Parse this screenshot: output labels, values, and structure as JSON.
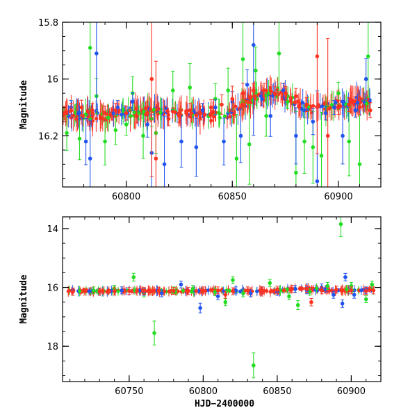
{
  "chart_data": [
    {
      "type": "scatter",
      "panel": "top",
      "ylabel": "Magnitude",
      "xlabel": "",
      "xlim": [
        60770,
        60920
      ],
      "ylim": [
        16.38,
        15.8
      ],
      "y_inverted": true,
      "x_ticks": [
        60800,
        60850,
        60900
      ],
      "y_ticks": [
        15.8,
        16,
        16.2
      ],
      "grid": false,
      "series": [
        {
          "color": "#22dd22",
          "x": [
            60772,
            60778,
            60783,
            60786,
            60790,
            60795,
            60800,
            60803,
            60806,
            60808,
            60812,
            60814,
            60822,
            60830,
            60835,
            60842,
            60848,
            60852,
            60855,
            60858,
            60861,
            60866,
            60872,
            60876,
            60880,
            60884,
            60888,
            60892,
            60900,
            60905,
            60910,
            60914
          ],
          "y": [
            16.19,
            16.21,
            15.89,
            16.06,
            16.22,
            16.18,
            16.16,
            16.05,
            16.12,
            16.2,
            16.14,
            16.19,
            16.04,
            16.03,
            16.12,
            16.07,
            16.04,
            16.28,
            15.93,
            16.23,
            15.97,
            16.13,
            15.91,
            16.08,
            16.33,
            16.22,
            16.24,
            16.27,
            16.05,
            16.22,
            16.3,
            15.92
          ]
        },
        {
          "color": "#2255ee",
          "x": [
            60774,
            60778,
            60781,
            60783,
            60786,
            60790,
            60796,
            60803,
            60810,
            60812,
            60818,
            60826,
            60833,
            60836,
            60842,
            60846,
            60850,
            60854,
            60857,
            60860,
            60864,
            60868,
            60874,
            60880,
            60884,
            60888,
            60890,
            60894,
            60898,
            60902,
            60908,
            60913
          ],
          "y": [
            16.1,
            16.12,
            16.22,
            16.28,
            15.91,
            16.12,
            16.1,
            16.08,
            16.16,
            16.26,
            16.3,
            16.22,
            16.24,
            16.11,
            16.1,
            16.22,
            16.08,
            16.2,
            16.02,
            15.88,
            16.07,
            16.13,
            16.04,
            16.2,
            16.11,
            16.15,
            16.36,
            16.12,
            16.1,
            16.2,
            16.11,
            16.0
          ]
        },
        {
          "color": "#ff3322",
          "x": [
            60771,
            60774,
            60779,
            60784,
            60790,
            60795,
            60800,
            60805,
            60810,
            60812,
            60814,
            60820,
            60825,
            60830,
            60835,
            60840,
            60845,
            60850,
            60855,
            60860,
            60865,
            60870,
            60875,
            60880,
            60885,
            60890,
            60895,
            60900,
            60905,
            60910,
            60915
          ],
          "y": [
            16.12,
            16.11,
            16.1,
            16.11,
            16.12,
            16.11,
            16.12,
            16.13,
            16.12,
            16.0,
            16.28,
            16.14,
            16.13,
            16.11,
            16.12,
            16.1,
            16.09,
            16.07,
            16.05,
            16.04,
            16.04,
            16.05,
            16.05,
            16.06,
            16.09,
            15.92,
            16.2,
            16.1,
            16.09,
            16.1,
            16.11
          ]
        }
      ]
    },
    {
      "type": "scatter",
      "panel": "bottom",
      "ylabel": "Magnitude",
      "xlabel": "HJD−2400000",
      "xlim": [
        60705,
        60920
      ],
      "ylim": [
        19.2,
        13.6
      ],
      "y_inverted": true,
      "x_ticks": [
        60750,
        60800,
        60850,
        60900
      ],
      "y_ticks": [
        14,
        16,
        18
      ],
      "grid": false,
      "series": [
        {
          "color": "#22dd22",
          "x": [
            60726,
            60740,
            60753,
            60760,
            60767,
            60780,
            60793,
            60808,
            60815,
            60820,
            60827,
            60834,
            60845,
            60858,
            60864,
            60872,
            60884,
            60893,
            60900,
            60910,
            60914
          ],
          "y": [
            16.1,
            16.05,
            15.65,
            16.2,
            17.55,
            16.1,
            16.05,
            16.15,
            16.5,
            15.75,
            16.2,
            18.65,
            15.85,
            16.3,
            16.6,
            16.15,
            15.95,
            13.85,
            15.95,
            16.4,
            15.9
          ]
        },
        {
          "color": "#2255ee",
          "x": [
            60730,
            60745,
            60760,
            60772,
            60785,
            60798,
            60810,
            60822,
            60832,
            60840,
            60850,
            60862,
            60870,
            60880,
            60888,
            60894,
            60896,
            60902,
            60910
          ],
          "y": [
            16.15,
            16.1,
            16.15,
            16.2,
            15.9,
            16.7,
            16.3,
            16.1,
            16.2,
            16.1,
            16.15,
            16.05,
            16.1,
            16.0,
            16.25,
            16.55,
            15.65,
            16.25,
            16.1
          ]
        },
        {
          "color": "#ff3322",
          "x": [
            60712,
            60720,
            60730,
            60740,
            60750,
            60760,
            60770,
            60780,
            60790,
            60800,
            60810,
            60815,
            60820,
            60830,
            60840,
            60850,
            60860,
            60870,
            60873,
            60880,
            60890,
            60900,
            60910,
            60915
          ],
          "y": [
            16.15,
            16.14,
            16.14,
            16.13,
            16.12,
            16.12,
            16.11,
            16.12,
            16.12,
            16.1,
            16.1,
            16.25,
            16.13,
            16.1,
            16.1,
            16.08,
            16.05,
            16.05,
            16.5,
            16.1,
            16.08,
            16.1,
            16.12,
            16.1
          ]
        }
      ]
    }
  ]
}
